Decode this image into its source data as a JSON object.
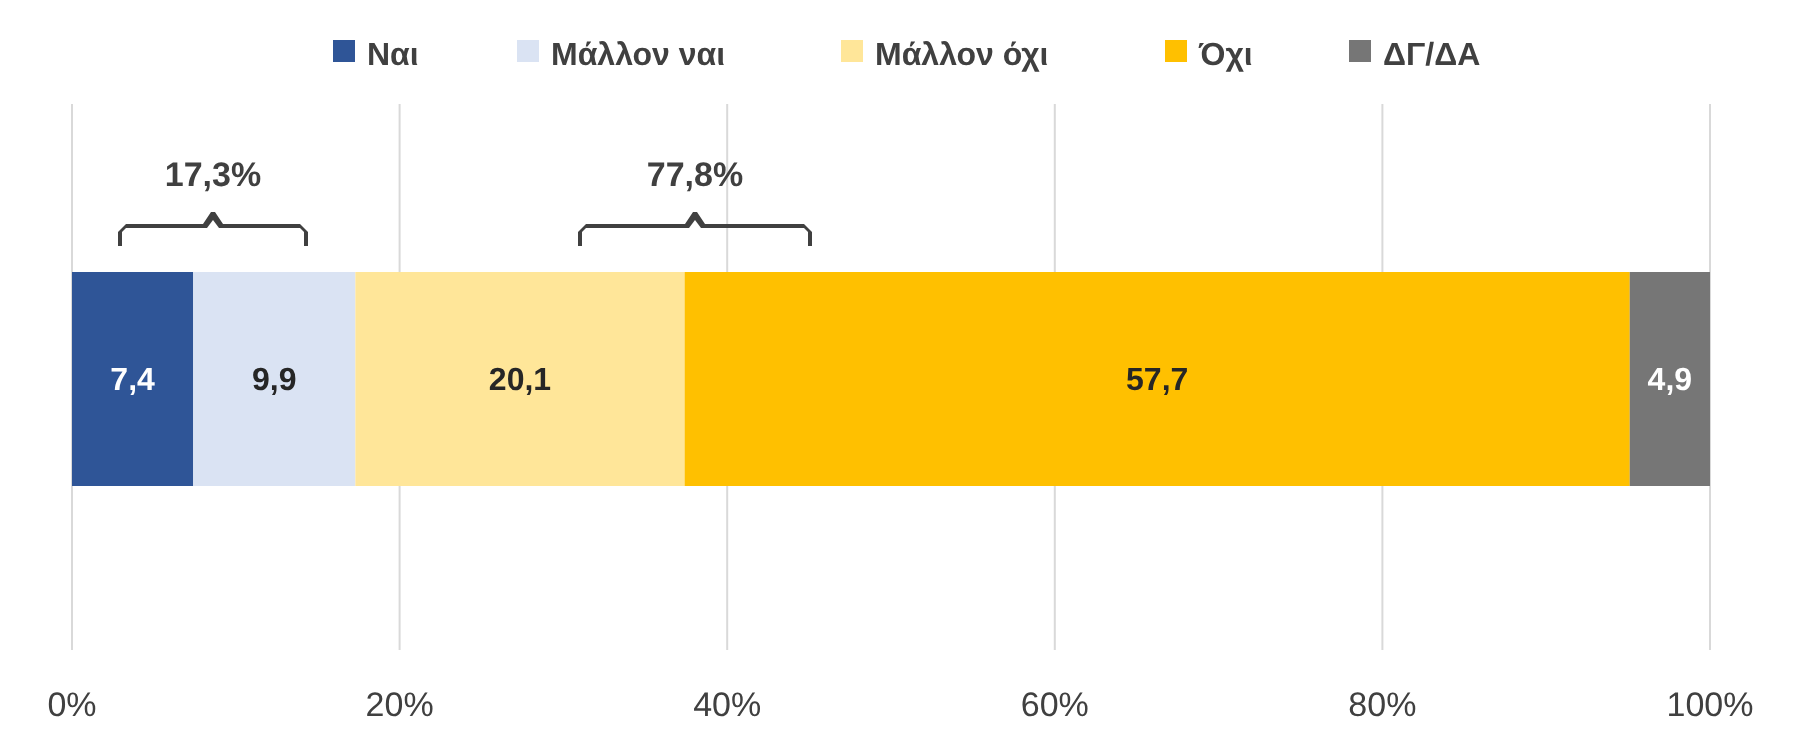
{
  "chart_data": {
    "type": "bar",
    "orientation": "horizontal",
    "stacked": true,
    "categories": [
      null
    ],
    "series": [
      {
        "name": "Ναι",
        "color": "#2f5597",
        "values": [
          7.4
        ],
        "value_labels": [
          "7,4"
        ]
      },
      {
        "name": "Μάλλον ναι",
        "color": "#dae3f3",
        "values": [
          9.9
        ],
        "value_labels": [
          "9,9"
        ]
      },
      {
        "name": "Μάλλον όχι",
        "color": "#ffe699",
        "values": [
          20.1
        ],
        "value_labels": [
          "20,1"
        ]
      },
      {
        "name": "Όχι",
        "color": "#ffc000",
        "values": [
          57.7
        ],
        "value_labels": [
          "57,7"
        ]
      },
      {
        "name": "ΔΓ/ΔΑ",
        "color": "#767676",
        "values": [
          4.9
        ],
        "value_labels": [
          "4,9"
        ]
      }
    ],
    "xlim": [
      0,
      100
    ],
    "xticks": [
      {
        "value": 0,
        "label": "0%"
      },
      {
        "value": 20,
        "label": "20%"
      },
      {
        "value": 40,
        "label": "40%"
      },
      {
        "value": 60,
        "label": "60%"
      },
      {
        "value": 80,
        "label": "80%"
      },
      {
        "value": 100,
        "label": "100%"
      }
    ],
    "grid": "x",
    "legend": "top",
    "annotations": [
      "17,3%",
      "77,8%"
    ]
  }
}
